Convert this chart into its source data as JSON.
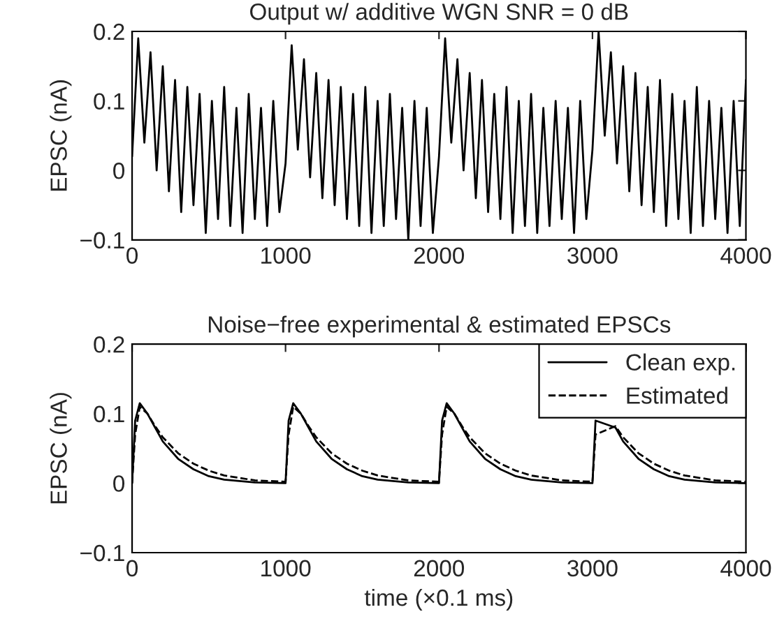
{
  "chart_data": [
    {
      "type": "line",
      "title": "Output w/ additive WGN SNR = 0 dB",
      "ylabel": "EPSC (nA)",
      "x": [
        0,
        40,
        80,
        120,
        160,
        200,
        240,
        280,
        320,
        360,
        400,
        440,
        480,
        520,
        560,
        600,
        640,
        680,
        720,
        760,
        800,
        840,
        880,
        920,
        960,
        1000,
        1040,
        1080,
        1120,
        1160,
        1200,
        1240,
        1280,
        1320,
        1360,
        1400,
        1440,
        1480,
        1520,
        1560,
        1600,
        1640,
        1680,
        1720,
        1760,
        1800,
        1840,
        1880,
        1920,
        1960,
        2000,
        2040,
        2080,
        2120,
        2160,
        2200,
        2240,
        2280,
        2320,
        2360,
        2400,
        2440,
        2480,
        2520,
        2560,
        2600,
        2640,
        2680,
        2720,
        2760,
        2800,
        2840,
        2880,
        2920,
        2960,
        3000,
        3040,
        3080,
        3120,
        3160,
        3200,
        3240,
        3280,
        3320,
        3360,
        3400,
        3440,
        3480,
        3520,
        3560,
        3600,
        3640,
        3680,
        3720,
        3760,
        3800,
        3840,
        3880,
        3920,
        3960,
        4000
      ],
      "series": [
        {
          "color": "#000000",
          "values": [
            0.02,
            0.19,
            0.04,
            0.17,
            0.0,
            0.15,
            -0.03,
            0.13,
            -0.06,
            0.12,
            -0.05,
            0.11,
            -0.09,
            0.1,
            -0.07,
            0.12,
            -0.08,
            0.09,
            -0.09,
            0.11,
            -0.07,
            0.09,
            -0.08,
            0.1,
            -0.06,
            0.01,
            0.18,
            0.03,
            0.16,
            -0.01,
            0.14,
            -0.04,
            0.13,
            -0.05,
            0.12,
            -0.07,
            0.11,
            -0.08,
            0.12,
            -0.09,
            0.1,
            -0.08,
            0.11,
            -0.07,
            0.09,
            -0.1,
            0.1,
            -0.08,
            0.09,
            -0.09,
            0.02,
            0.19,
            0.04,
            0.16,
            0.0,
            0.14,
            -0.04,
            0.13,
            -0.06,
            0.11,
            -0.07,
            0.12,
            -0.09,
            0.1,
            -0.08,
            0.11,
            -0.09,
            0.09,
            -0.08,
            0.1,
            -0.07,
            0.09,
            -0.09,
            0.1,
            -0.07,
            0.03,
            0.2,
            0.05,
            0.17,
            0.01,
            0.15,
            -0.03,
            0.14,
            -0.05,
            0.12,
            -0.06,
            0.13,
            -0.08,
            0.11,
            -0.07,
            0.1,
            -0.09,
            0.12,
            -0.08,
            0.1,
            -0.07,
            0.09,
            -0.09,
            0.1,
            -0.08,
            0.13
          ]
        }
      ],
      "xlim": [
        0,
        4000
      ],
      "ylim": [
        -0.1,
        0.2
      ],
      "xticks": [
        0,
        1000,
        2000,
        3000,
        4000
      ],
      "yticks": [
        {
          "value": -0.1,
          "label": "−0.1"
        },
        0,
        0.1,
        0.2
      ]
    },
    {
      "type": "line",
      "title": "Noise−free experimental & estimated EPSCs",
      "xlabel": "time (×0.1 ms)",
      "ylabel": "EPSC (nA)",
      "x": [
        0,
        20,
        50,
        100,
        150,
        200,
        300,
        400,
        500,
        600,
        800,
        999,
        1000,
        1020,
        1050,
        1100,
        1150,
        1200,
        1300,
        1400,
        1500,
        1600,
        1800,
        1999,
        2000,
        2020,
        2050,
        2100,
        2150,
        2200,
        2300,
        2400,
        2500,
        2600,
        2800,
        2999,
        3000,
        3020,
        3050,
        3100,
        3150,
        3200,
        3300,
        3400,
        3500,
        3600,
        3800,
        4000
      ],
      "series": [
        {
          "name": "Clean exp.",
          "color": "#000000",
          "line_style": "solid",
          "values": [
            0,
            0.09,
            0.115,
            0.1,
            0.08,
            0.06,
            0.035,
            0.02,
            0.01,
            0.005,
            0.001,
            0,
            0,
            0.09,
            0.115,
            0.1,
            0.08,
            0.06,
            0.035,
            0.02,
            0.01,
            0.005,
            0.001,
            0,
            0,
            0.09,
            0.115,
            0.1,
            0.08,
            0.06,
            0.035,
            0.02,
            0.01,
            0.005,
            0.001,
            0,
            0,
            0.09,
            null,
            null,
            0.08,
            0.06,
            0.035,
            0.02,
            0.01,
            0.005,
            0.001,
            0
          ]
        },
        {
          "name": "Estimated",
          "color": "#000000",
          "line_style": "dashed",
          "values": [
            0,
            0.07,
            0.11,
            0.1,
            0.082,
            0.066,
            0.043,
            0.028,
            0.018,
            0.011,
            0.004,
            0.002,
            0.002,
            0.07,
            0.11,
            0.1,
            0.082,
            0.066,
            0.043,
            0.028,
            0.018,
            0.011,
            0.004,
            0.002,
            0.002,
            0.07,
            0.11,
            0.1,
            0.082,
            0.066,
            0.043,
            0.028,
            0.018,
            0.011,
            0.004,
            0.002,
            0.002,
            0.07,
            null,
            null,
            0.082,
            0.066,
            0.043,
            0.028,
            0.018,
            0.011,
            0.004,
            0.002
          ]
        }
      ],
      "legend": "top right",
      "xlim": [
        0,
        4000
      ],
      "ylim": [
        -0.1,
        0.2
      ],
      "xticks": [
        0,
        1000,
        2000,
        3000,
        4000
      ],
      "yticks": [
        {
          "value": -0.1,
          "label": "−0.1"
        },
        0,
        0.1,
        0.2
      ]
    }
  ]
}
